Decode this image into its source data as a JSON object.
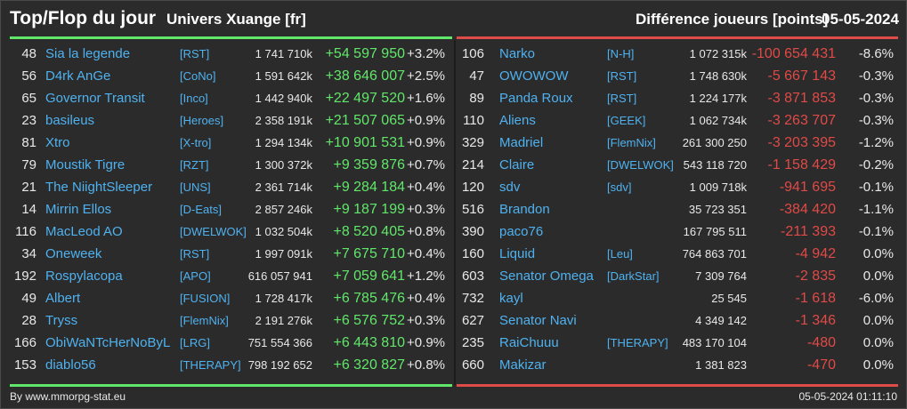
{
  "header": {
    "title": "Top/Flop du jour",
    "universe": "Univers Xuange [fr]",
    "metric": "Différence joueurs [points]",
    "date": "05-05-2024"
  },
  "colors": {
    "positive": "#61e86a",
    "negative": "#e04a47",
    "link": "#4fb2f0"
  },
  "top": [
    {
      "rank": "48",
      "name": "Sia la legende",
      "guild": "[RST]",
      "points": "1 741 710k",
      "diff": "+54 597 950",
      "pct": "+3.2%"
    },
    {
      "rank": "56",
      "name": "D4rk AnGe",
      "guild": "[CoNo]",
      "points": "1 591 642k",
      "diff": "+38 646 007",
      "pct": "+2.5%"
    },
    {
      "rank": "65",
      "name": "Governor Transit",
      "guild": "[Inco]",
      "points": "1 442 940k",
      "diff": "+22 497 520",
      "pct": "+1.6%"
    },
    {
      "rank": "23",
      "name": "basileus",
      "guild": "[Heroes]",
      "points": "2 358 191k",
      "diff": "+21 507 065",
      "pct": "+0.9%"
    },
    {
      "rank": "81",
      "name": "Xtro",
      "guild": "[X-tro]",
      "points": "1 294 134k",
      "diff": "+10 901 531",
      "pct": "+0.9%"
    },
    {
      "rank": "79",
      "name": "Moustik Tigre",
      "guild": "[RZT]",
      "points": "1 300 372k",
      "diff": "+9 359 876",
      "pct": "+0.7%"
    },
    {
      "rank": "21",
      "name": "The NiightSleeper",
      "guild": "[UNS]",
      "points": "2 361 714k",
      "diff": "+9 284 184",
      "pct": "+0.4%"
    },
    {
      "rank": "14",
      "name": "Mirrin Ellos",
      "guild": "[D-Eats]",
      "points": "2 857 246k",
      "diff": "+9 187 199",
      "pct": "+0.3%"
    },
    {
      "rank": "116",
      "name": "MacLeod AO",
      "guild": "[DWELWOK]",
      "points": "1 032 504k",
      "diff": "+8 520 405",
      "pct": "+0.8%"
    },
    {
      "rank": "34",
      "name": "Oneweek",
      "guild": "[RST]",
      "points": "1 997 091k",
      "diff": "+7 675 710",
      "pct": "+0.4%"
    },
    {
      "rank": "192",
      "name": "Rospylacopa",
      "guild": "[APO]",
      "points": "616 057 941",
      "diff": "+7 059 641",
      "pct": "+1.2%"
    },
    {
      "rank": "49",
      "name": "Albert",
      "guild": "[FUSION]",
      "points": "1 728 417k",
      "diff": "+6 785 476",
      "pct": "+0.4%"
    },
    {
      "rank": "28",
      "name": "Tryss",
      "guild": "[FlemNix]",
      "points": "2 191 276k",
      "diff": "+6 576 752",
      "pct": "+0.3%"
    },
    {
      "rank": "166",
      "name": "ObiWaNTcHerNoByL",
      "guild": "[LRG]",
      "points": "751 554 366",
      "diff": "+6 443 810",
      "pct": "+0.9%"
    },
    {
      "rank": "153",
      "name": "diablo56",
      "guild": "[THERAPY]",
      "points": "798 192 652",
      "diff": "+6 320 827",
      "pct": "+0.8%"
    }
  ],
  "flop": [
    {
      "rank": "106",
      "name": "Narko",
      "guild": "[N-H]",
      "points": "1 072 315k",
      "diff": "-100 654 431",
      "pct": "-8.6%"
    },
    {
      "rank": "47",
      "name": "OWOWOW",
      "guild": "[RST]",
      "points": "1 748 630k",
      "diff": "-5 667 143",
      "pct": "-0.3%"
    },
    {
      "rank": "89",
      "name": "Panda Roux",
      "guild": "[RST]",
      "points": "1 224 177k",
      "diff": "-3 871 853",
      "pct": "-0.3%"
    },
    {
      "rank": "110",
      "name": "Aliens",
      "guild": "[GEEK]",
      "points": "1 062 734k",
      "diff": "-3 263 707",
      "pct": "-0.3%"
    },
    {
      "rank": "329",
      "name": "Madriel",
      "guild": "[FlemNix]",
      "points": "261 300 250",
      "diff": "-3 203 395",
      "pct": "-1.2%"
    },
    {
      "rank": "214",
      "name": "Claire",
      "guild": "[DWELWOK]",
      "points": "543 118 720",
      "diff": "-1 158 429",
      "pct": "-0.2%"
    },
    {
      "rank": "120",
      "name": "sdv",
      "guild": "[sdv]",
      "points": "1 009 718k",
      "diff": "-941 695",
      "pct": "-0.1%"
    },
    {
      "rank": "516",
      "name": "Brandon",
      "guild": "",
      "points": "35 723 351",
      "diff": "-384 420",
      "pct": "-1.1%"
    },
    {
      "rank": "390",
      "name": "paco76",
      "guild": "",
      "points": "167 795 511",
      "diff": "-211 393",
      "pct": "-0.1%"
    },
    {
      "rank": "160",
      "name": "Liquid",
      "guild": "[Leu]",
      "points": "764 863 701",
      "diff": "-4 942",
      "pct": "0.0%"
    },
    {
      "rank": "603",
      "name": "Senator Omega",
      "guild": "[DarkStar]",
      "points": "7 309 764",
      "diff": "-2 835",
      "pct": "0.0%"
    },
    {
      "rank": "732",
      "name": "kayl",
      "guild": "",
      "points": "25 545",
      "diff": "-1 618",
      "pct": "-6.0%"
    },
    {
      "rank": "627",
      "name": "Senator Navi",
      "guild": "",
      "points": "4 349 142",
      "diff": "-1 346",
      "pct": "0.0%"
    },
    {
      "rank": "235",
      "name": "RaiChuuu",
      "guild": "[THERAPY]",
      "points": "483 170 104",
      "diff": "-480",
      "pct": "0.0%"
    },
    {
      "rank": "660",
      "name": "Makizar",
      "guild": "",
      "points": "1 381 823",
      "diff": "-470",
      "pct": "0.0%"
    }
  ],
  "footer": {
    "credit": "By www.mmorpg-stat.eu",
    "timestamp": "05-05-2024 01:11:10"
  }
}
